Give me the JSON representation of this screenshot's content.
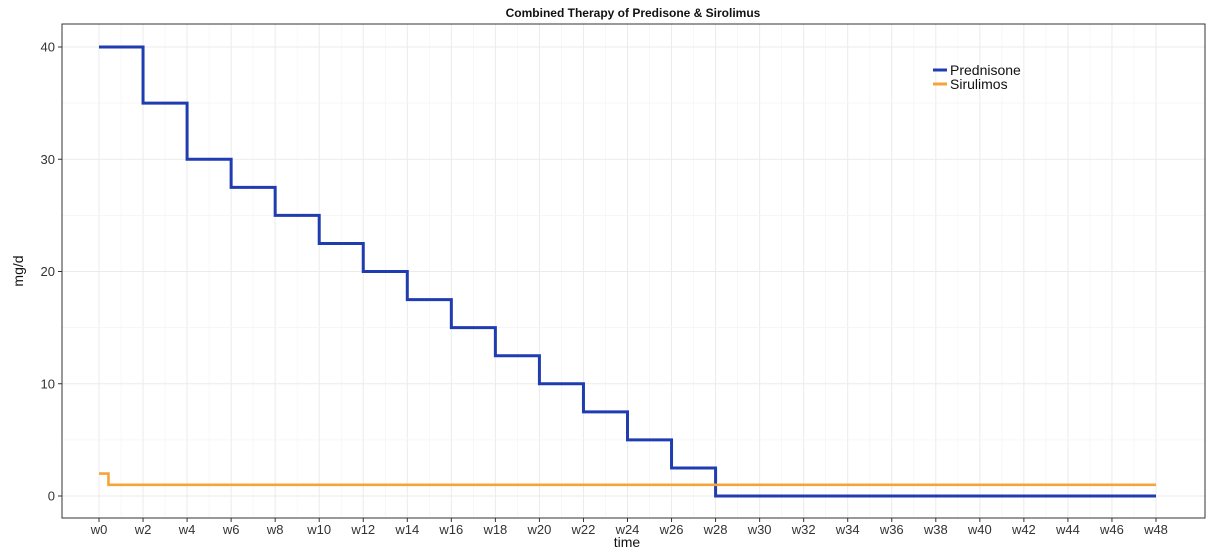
{
  "chart_data": {
    "type": "line",
    "title": "Combined Therapy of Predisone & Sirolimus",
    "xlabel": "time",
    "ylabel": "mg/d",
    "categories": [
      "w0",
      "w2",
      "w4",
      "w6",
      "w8",
      "w10",
      "w12",
      "w14",
      "w16",
      "w18",
      "w20",
      "w22",
      "w24",
      "w26",
      "w28",
      "w30",
      "w32",
      "w34",
      "w36",
      "w38",
      "w40",
      "w42",
      "w44",
      "w46",
      "w48"
    ],
    "xlim": [
      0,
      48
    ],
    "ylim": [
      0,
      40
    ],
    "y_ticks": [
      "0",
      "10",
      "20",
      "30",
      "40"
    ],
    "grid": true,
    "legend_position": "top-right",
    "series": [
      {
        "name": "Prednisone",
        "color": "#1f3cb0",
        "step": true,
        "x": [
          0,
          2,
          4,
          6,
          8,
          10,
          12,
          14,
          16,
          18,
          20,
          22,
          24,
          26,
          28,
          48
        ],
        "y": [
          40,
          35,
          30,
          27.5,
          25,
          22.5,
          20,
          17.5,
          15,
          12.5,
          10,
          7.5,
          5,
          2.5,
          0,
          0
        ]
      },
      {
        "name": "Sirulimos",
        "color": "#f5a43a",
        "step": true,
        "x": [
          0,
          0.43,
          48
        ],
        "y": [
          2,
          1,
          1
        ]
      }
    ]
  }
}
